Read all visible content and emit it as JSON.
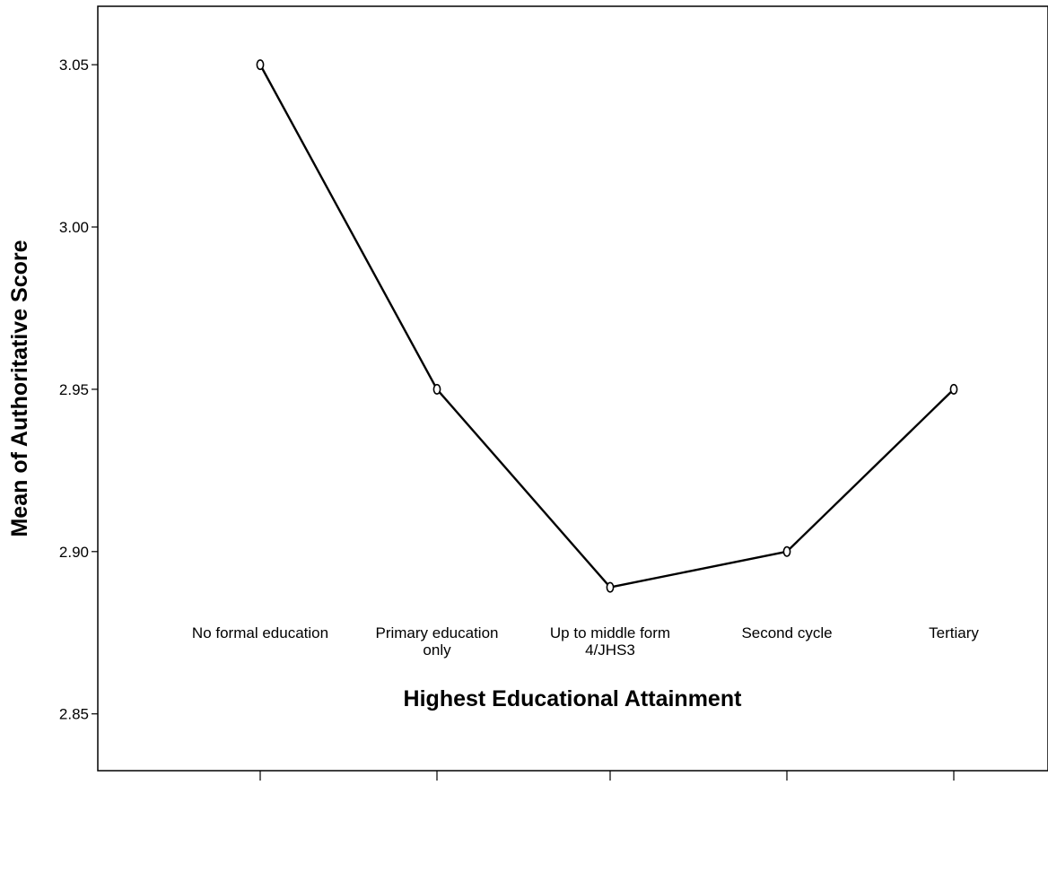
{
  "chart_data": {
    "type": "line",
    "title": "",
    "xlabel": "Highest Educational Attainment",
    "ylabel": "Mean of Authoritative Score",
    "categories": [
      [
        "No formal education"
      ],
      [
        "Primary education",
        "only"
      ],
      [
        "Up to middle form",
        "4/JHS3"
      ],
      [
        "Second cycle"
      ],
      [
        "Tertiary"
      ]
    ],
    "series": [
      {
        "values": [
          3.05,
          2.95,
          2.889,
          2.9,
          2.95
        ]
      }
    ],
    "ylim": [
      2.8325,
      3.068
    ],
    "yticks": [
      2.85,
      2.9,
      2.95,
      3.0,
      3.05
    ],
    "ytick_labels": [
      "2.85",
      "2.90",
      "2.95",
      "3.00",
      "3.05"
    ],
    "marker": "circle-open",
    "grid": false,
    "legend": "none",
    "colors": {
      "line": "#000000",
      "axis": "#000000",
      "background": "#ffffff"
    }
  }
}
